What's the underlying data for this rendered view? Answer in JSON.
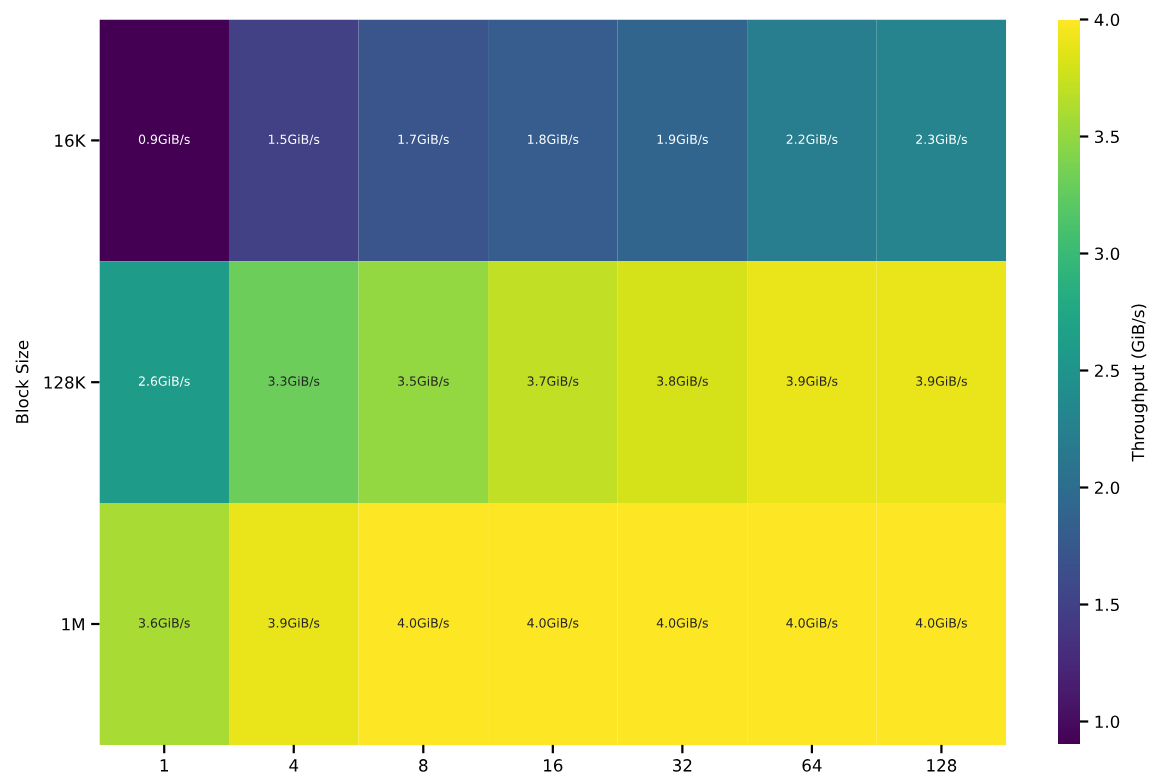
{
  "chart_data": {
    "type": "heatmap",
    "ylabel": "Block Size",
    "clabel": "Throughput (GiB/s)",
    "categories": [
      "1",
      "4",
      "8",
      "16",
      "32",
      "64",
      "128"
    ],
    "y_categories": [
      "16K",
      "128K",
      "1M"
    ],
    "cells": [
      [
        0.9,
        1.5,
        1.7,
        1.8,
        1.9,
        2.2,
        2.3
      ],
      [
        2.6,
        3.3,
        3.5,
        3.7,
        3.8,
        3.9,
        3.9
      ],
      [
        3.6,
        3.9,
        4.0,
        4.0,
        4.0,
        4.0,
        4.0
      ]
    ],
    "cell_labels": [
      [
        "0.9GiB/s",
        "1.5GiB/s",
        "1.7GiB/s",
        "1.8GiB/s",
        "1.9GiB/s",
        "2.2GiB/s",
        "2.3GiB/s"
      ],
      [
        "2.6GiB/s",
        "3.3GiB/s",
        "3.5GiB/s",
        "3.7GiB/s",
        "3.8GiB/s",
        "3.9GiB/s",
        "3.9GiB/s"
      ],
      [
        "3.6GiB/s",
        "3.9GiB/s",
        "4.0GiB/s",
        "4.0GiB/s",
        "4.0GiB/s",
        "4.0GiB/s",
        "4.0GiB/s"
      ]
    ],
    "clim": [
      0.9,
      4.0
    ],
    "cticks": [
      {
        "value": 1,
        "label": "1.0"
      },
      1.5,
      {
        "value": 2,
        "label": "2.0"
      },
      2.5,
      {
        "value": 3,
        "label": "3.0"
      },
      3.5,
      {
        "value": 4,
        "label": "4.0"
      }
    ]
  }
}
